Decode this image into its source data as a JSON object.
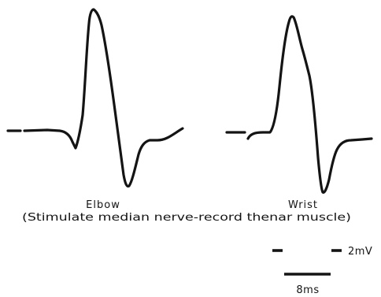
{
  "labels": {
    "elbow": "Elbow",
    "wrist": "Wrist",
    "caption": "(Stimulate median nerve-record thenar muscle)"
  },
  "scale": {
    "voltage": "2mV",
    "time": "8ms"
  },
  "colors": {
    "ink": "#141414",
    "background": "#ffffff"
  }
}
